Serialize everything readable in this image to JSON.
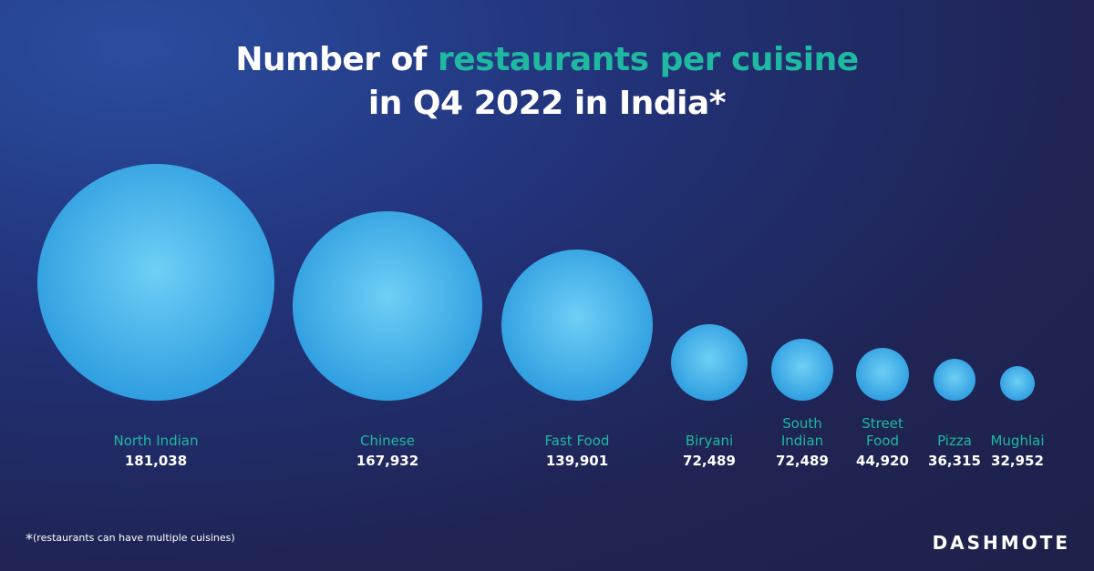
{
  "title": {
    "part1": "Number of ",
    "highlight": "restaurants per cuisine",
    "line2": "in Q4 2022 in India*"
  },
  "footnote": {
    "star": "*",
    "text": "(restaurants can have multiple cuisines)"
  },
  "logo": "DASHMOTE",
  "colors": {
    "accent": "#1fb8a0",
    "bubble_light": "#6fcff5",
    "bubble_dark": "#2f9ee0",
    "text": "#ffffff"
  },
  "chart_data": {
    "type": "bubble",
    "title": "Number of restaurants per cuisine in Q4 2022 in India*",
    "categories": [
      [
        "North Indian"
      ],
      [
        "Chinese"
      ],
      [
        "Fast Food"
      ],
      [
        "Biryani"
      ],
      [
        "South",
        "Indian"
      ],
      [
        "Street",
        "Food"
      ],
      [
        "Pizza"
      ],
      [
        "Mughlai"
      ]
    ],
    "values": [
      181038,
      167932,
      139901,
      72489,
      72489,
      44920,
      36315,
      32952
    ],
    "value_labels": [
      "181,038",
      "167,932",
      "139,901",
      "72,489",
      "72,489",
      "44,920",
      "36,315",
      "32,952"
    ]
  }
}
